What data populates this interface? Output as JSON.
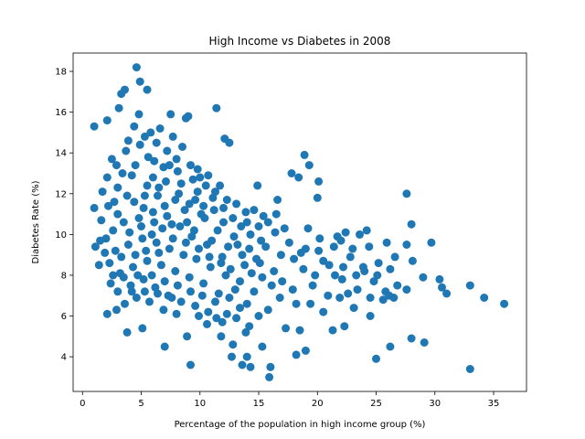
{
  "chart_data": {
    "type": "scatter",
    "title": "High Income vs Diabetes in 2008",
    "xlabel": "Percentage of the population in high income group (%)",
    "ylabel": "Diabetes Rate (%)",
    "xlim": [
      -0.8,
      37.8
    ],
    "ylim": [
      2.3,
      18.9
    ],
    "xticks": [
      0,
      5,
      10,
      15,
      20,
      25,
      30,
      35
    ],
    "yticks": [
      4,
      6,
      8,
      10,
      12,
      14,
      16,
      18
    ],
    "grid": false,
    "legend": "none",
    "marker_color": "#1f77b4",
    "points": [
      [
        4.6,
        18.2
      ],
      [
        4.9,
        17.5
      ],
      [
        5.5,
        17.1
      ],
      [
        3.6,
        17.1
      ],
      [
        3.3,
        16.9
      ],
      [
        11.4,
        16.2
      ],
      [
        3.1,
        16.2
      ],
      [
        4.8,
        15.9
      ],
      [
        8.8,
        15.7
      ],
      [
        1.0,
        15.3
      ],
      [
        2.1,
        15.6
      ],
      [
        7.5,
        15.9
      ],
      [
        9.0,
        15.8
      ],
      [
        12.5,
        14.5
      ],
      [
        12.1,
        14.7
      ],
      [
        18.9,
        13.9
      ],
      [
        19.3,
        13.4
      ],
      [
        17.8,
        13.0
      ],
      [
        20.1,
        12.6
      ],
      [
        27.6,
        12.0
      ],
      [
        20.0,
        11.8
      ],
      [
        18.4,
        12.8
      ],
      [
        28.0,
        10.5
      ],
      [
        29.7,
        9.6
      ],
      [
        24.2,
        10.2
      ],
      [
        22.4,
        10.1
      ],
      [
        23.6,
        10.0
      ],
      [
        21.7,
        9.9
      ],
      [
        25.9,
        9.6
      ],
      [
        27.6,
        9.5
      ],
      [
        23.0,
        9.3
      ],
      [
        26.6,
        8.9
      ],
      [
        25.2,
        8.6
      ],
      [
        29.0,
        7.9
      ],
      [
        30.4,
        7.8
      ],
      [
        30.6,
        7.4
      ],
      [
        31.0,
        7.1
      ],
      [
        33.0,
        7.5
      ],
      [
        34.2,
        6.9
      ],
      [
        35.9,
        6.6
      ],
      [
        33.0,
        3.4
      ],
      [
        29.1,
        4.7
      ],
      [
        28.0,
        4.9
      ],
      [
        26.2,
        4.5
      ],
      [
        25.0,
        3.9
      ],
      [
        24.5,
        6.0
      ],
      [
        22.3,
        5.5
      ],
      [
        21.3,
        5.3
      ],
      [
        26.1,
        7.0
      ],
      [
        27.6,
        7.3
      ],
      [
        28.1,
        8.7
      ],
      [
        26.2,
        8.3
      ],
      [
        23.4,
        7.3
      ],
      [
        22.1,
        7.8
      ],
      [
        20.9,
        7.0
      ],
      [
        19.6,
        7.5
      ],
      [
        18.2,
        6.6
      ],
      [
        18.5,
        5.3
      ],
      [
        19.0,
        4.3
      ],
      [
        18.2,
        4.1
      ],
      [
        17.3,
        5.4
      ],
      [
        16.0,
        3.5
      ],
      [
        15.9,
        3.0
      ],
      [
        15.3,
        4.5
      ],
      [
        14.3,
        3.5
      ],
      [
        14.0,
        4.0
      ],
      [
        13.6,
        3.6
      ],
      [
        12.7,
        4.0
      ],
      [
        13.9,
        5.2
      ],
      [
        12.8,
        4.6
      ],
      [
        11.8,
        5.0
      ],
      [
        11.4,
        5.9
      ],
      [
        12.3,
        6.1
      ],
      [
        9.2,
        3.6
      ],
      [
        8.9,
        5.0
      ],
      [
        7.0,
        4.5
      ],
      [
        5.1,
        5.4
      ],
      [
        3.8,
        5.2
      ],
      [
        2.9,
        6.3
      ],
      [
        2.1,
        6.1
      ],
      [
        1.0,
        11.3
      ],
      [
        1.7,
        12.1
      ],
      [
        1.4,
        8.5
      ],
      [
        1.1,
        9.4
      ],
      [
        14.9,
        12.4
      ],
      [
        15.4,
        10.9
      ],
      [
        16.6,
        11.7
      ],
      [
        16.5,
        11.0
      ],
      [
        17.6,
        9.6
      ],
      [
        17.2,
        10.3
      ],
      [
        19.2,
        10.3
      ],
      [
        18.6,
        9.1
      ],
      [
        20.2,
        9.8
      ],
      [
        21.4,
        9.4
      ],
      [
        22.0,
        9.7
      ],
      [
        22.8,
        8.9
      ],
      [
        24.4,
        9.4
      ],
      [
        24.0,
        8.2
      ],
      [
        20.5,
        8.7
      ],
      [
        19.8,
        8.0
      ],
      [
        21.5,
        8.0
      ],
      [
        22.6,
        7.1
      ],
      [
        23.9,
        8.4
      ],
      [
        25.1,
        8.0
      ],
      [
        26.8,
        7.5
      ],
      [
        25.8,
        7.2
      ],
      [
        23.1,
        6.4
      ],
      [
        21.9,
        6.9
      ],
      [
        20.5,
        6.2
      ],
      [
        19.4,
        6.6
      ],
      [
        17.0,
        7.7
      ],
      [
        16.3,
        8.2
      ],
      [
        15.1,
        8.6
      ],
      [
        16.8,
        6.9
      ],
      [
        15.8,
        6.3
      ],
      [
        14.6,
        7.2
      ],
      [
        14.0,
        6.6
      ],
      [
        13.4,
        7.7
      ],
      [
        12.6,
        8.3
      ],
      [
        13.2,
        9.5
      ],
      [
        12.0,
        10.6
      ],
      [
        11.2,
        11.2
      ],
      [
        10.5,
        12.4
      ],
      [
        9.8,
        13.2
      ],
      [
        8.5,
        14.3
      ],
      [
        7.7,
        14.8
      ],
      [
        6.6,
        15.2
      ],
      [
        5.8,
        15.0
      ],
      [
        6.1,
        13.6
      ],
      [
        4.9,
        14.4
      ],
      [
        3.7,
        14.1
      ],
      [
        2.5,
        13.7
      ],
      [
        2.1,
        12.8
      ],
      [
        3.0,
        12.3
      ],
      [
        4.2,
        12.9
      ],
      [
        5.5,
        12.4
      ],
      [
        6.4,
        11.9
      ],
      [
        7.1,
        12.6
      ],
      [
        8.2,
        12.0
      ],
      [
        9.1,
        11.5
      ],
      [
        10.1,
        11.0
      ],
      [
        11.5,
        10.2
      ],
      [
        12.9,
        9.9
      ],
      [
        14.2,
        9.3
      ],
      [
        13.8,
        8.5
      ],
      [
        11.9,
        8.9
      ],
      [
        10.6,
        9.5
      ],
      [
        9.3,
        9.9
      ],
      [
        8.3,
        10.4
      ],
      [
        7.2,
        10.9
      ],
      [
        6.0,
        11.1
      ],
      [
        4.8,
        10.8
      ],
      [
        3.5,
        10.6
      ],
      [
        2.6,
        10.2
      ],
      [
        2.0,
        9.8
      ],
      [
        2.8,
        9.2
      ],
      [
        3.9,
        9.5
      ],
      [
        5.1,
        9.8
      ],
      [
        6.3,
        9.6
      ],
      [
        7.4,
        9.3
      ],
      [
        8.6,
        9.0
      ],
      [
        9.7,
        8.8
      ],
      [
        10.9,
        8.4
      ],
      [
        12.2,
        8.0
      ],
      [
        13.0,
        7.3
      ],
      [
        11.6,
        7.1
      ],
      [
        10.3,
        7.6
      ],
      [
        9.1,
        7.9
      ],
      [
        7.9,
        8.2
      ],
      [
        6.7,
        8.5
      ],
      [
        5.5,
        8.7
      ],
      [
        4.3,
        8.4
      ],
      [
        3.2,
        8.1
      ],
      [
        2.4,
        7.6
      ],
      [
        3.0,
        7.2
      ],
      [
        4.1,
        7.5
      ],
      [
        5.2,
        7.8
      ],
      [
        6.2,
        7.4
      ],
      [
        7.3,
        7.0
      ],
      [
        8.4,
        6.7
      ],
      [
        9.6,
        6.5
      ],
      [
        10.7,
        6.2
      ],
      [
        11.9,
        5.7
      ],
      [
        13.1,
        5.9
      ],
      [
        14.2,
        5.5
      ],
      [
        15.0,
        6.0
      ],
      [
        8.0,
        6.1
      ],
      [
        6.9,
        6.3
      ],
      [
        5.7,
        6.7
      ],
      [
        4.6,
        6.9
      ],
      [
        3.6,
        6.6
      ],
      [
        4.0,
        10.1
      ],
      [
        5.0,
        10.4
      ],
      [
        5.9,
        10.0
      ],
      [
        6.8,
        10.3
      ],
      [
        7.7,
        9.8
      ],
      [
        8.9,
        10.6
      ],
      [
        9.5,
        10.2
      ],
      [
        10.4,
        10.8
      ],
      [
        11.0,
        9.7
      ],
      [
        12.4,
        9.4
      ],
      [
        13.6,
        9.0
      ],
      [
        14.8,
        8.8
      ],
      [
        15.6,
        9.4
      ],
      [
        16.9,
        9.0
      ],
      [
        18.0,
        8.8
      ],
      [
        19.0,
        9.3
      ],
      [
        20.1,
        9.2
      ],
      [
        21.0,
        8.5
      ],
      [
        22.2,
        8.4
      ],
      [
        23.3,
        8.0
      ],
      [
        24.8,
        7.7
      ],
      [
        25.6,
        6.8
      ],
      [
        26.5,
        6.9
      ],
      [
        24.5,
        6.9
      ],
      [
        17.9,
        7.3
      ],
      [
        18.8,
        8.3
      ],
      [
        16.1,
        7.5
      ],
      [
        15.3,
        7.9
      ],
      [
        14.4,
        8.1
      ],
      [
        4.4,
        11.6
      ],
      [
        5.3,
        11.9
      ],
      [
        6.5,
        12.3
      ],
      [
        7.0,
        11.4
      ],
      [
        7.9,
        11.7
      ],
      [
        8.7,
        11.2
      ],
      [
        9.6,
        11.7
      ],
      [
        10.3,
        11.4
      ],
      [
        11.1,
        11.8
      ],
      [
        12.0,
        11.3
      ],
      [
        12.8,
        10.8
      ],
      [
        13.5,
        10.4
      ],
      [
        14.3,
        10.0
      ],
      [
        15.2,
        9.7
      ],
      [
        13.9,
        11.1
      ],
      [
        11.7,
        12.4
      ],
      [
        10.7,
        12.9
      ],
      [
        9.4,
        12.7
      ],
      [
        8.1,
        13.1
      ],
      [
        6.9,
        13.3
      ],
      [
        5.6,
        13.8
      ],
      [
        4.5,
        13.4
      ],
      [
        3.4,
        13.0
      ],
      [
        2.7,
        11.6
      ],
      [
        3.8,
        11.9
      ],
      [
        5.2,
        11.3
      ],
      [
        6.1,
        10.6
      ],
      [
        7.6,
        10.5
      ],
      [
        8.8,
        9.6
      ],
      [
        9.9,
        9.3
      ],
      [
        10.8,
        8.9
      ],
      [
        11.8,
        8.6
      ],
      [
        6.5,
        9.1
      ],
      [
        5.4,
        9.2
      ],
      [
        4.5,
        9.0
      ],
      [
        3.3,
        8.9
      ],
      [
        4.7,
        8.0
      ],
      [
        5.9,
        8.0
      ],
      [
        7.0,
        7.7
      ],
      [
        8.1,
        7.5
      ],
      [
        9.2,
        7.2
      ],
      [
        10.2,
        7.0
      ],
      [
        11.3,
        6.7
      ],
      [
        12.5,
        6.9
      ],
      [
        13.4,
        6.4
      ],
      [
        7.6,
        6.9
      ],
      [
        6.4,
        7.1
      ],
      [
        5.3,
        7.2
      ],
      [
        9.9,
        6.0
      ],
      [
        10.6,
        5.6
      ],
      [
        3.0,
        11.0
      ],
      [
        2.2,
        11.4
      ],
      [
        1.6,
        10.7
      ],
      [
        1.9,
        9.1
      ],
      [
        2.3,
        8.6
      ],
      [
        3.5,
        7.9
      ],
      [
        4.2,
        7.2
      ],
      [
        2.6,
        8.0
      ],
      [
        1.5,
        9.7
      ],
      [
        2.9,
        13.4
      ],
      [
        3.9,
        14.6
      ],
      [
        4.4,
        15.3
      ],
      [
        5.3,
        14.8
      ],
      [
        6.3,
        14.5
      ],
      [
        7.2,
        14.1
      ],
      [
        8.0,
        13.7
      ],
      [
        9.2,
        13.4
      ],
      [
        10.0,
        12.8
      ],
      [
        7.4,
        13.4
      ],
      [
        6.0,
        12.8
      ],
      [
        8.4,
        12.5
      ],
      [
        9.8,
        12.1
      ],
      [
        11.3,
        12.1
      ],
      [
        12.3,
        11.7
      ],
      [
        13.1,
        11.5
      ],
      [
        14.6,
        11.2
      ],
      [
        15.8,
        10.6
      ],
      [
        16.4,
        10.1
      ],
      [
        15.0,
        10.4
      ],
      [
        14.0,
        10.6
      ]
    ]
  }
}
